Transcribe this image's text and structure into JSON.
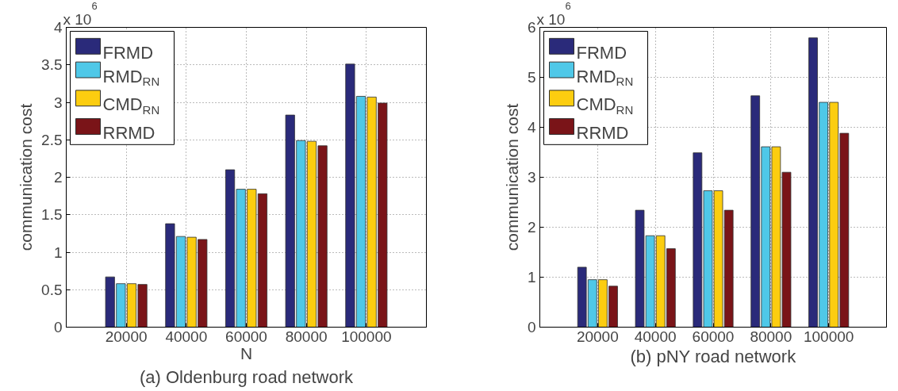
{
  "chart_data": [
    {
      "type": "bar",
      "title": "(a) Oldenburg road network",
      "xlabel": "N",
      "ylabel": "communication cost",
      "annotations": [
        "x 10$^{6}$"
      ],
      "categories": [
        "20000",
        "40000",
        "60000",
        "80000",
        "100000"
      ],
      "series": [
        {
          "name": "FRMD",
          "color": "#2a2a7a",
          "values": [
            0.67,
            1.38,
            2.1,
            2.83,
            3.51
          ]
        },
        {
          "name": "RMD$_{RN}$",
          "color": "#4fc8e8",
          "values": [
            0.58,
            1.21,
            1.84,
            2.49,
            3.08
          ]
        },
        {
          "name": "CMD$_{RN}$",
          "color": "#fccd10",
          "values": [
            0.58,
            1.2,
            1.84,
            2.48,
            3.07
          ]
        },
        {
          "name": "RRMD",
          "color": "#7a1418",
          "values": [
            0.57,
            1.17,
            1.78,
            2.42,
            2.99
          ]
        }
      ],
      "ylim": [
        0,
        4
      ],
      "yticks": [
        0,
        0.5,
        1,
        1.5,
        2,
        2.5,
        3,
        3.5,
        4
      ],
      "grid": true,
      "legend": "top left"
    },
    {
      "type": "bar",
      "title": "(b) pNY road network",
      "ylabel": "communication cost",
      "annotations": [
        "x 10$^{6}$"
      ],
      "categories": [
        "20000",
        "40000",
        "60000",
        "80000",
        "100000"
      ],
      "series": [
        {
          "name": "FRMD",
          "color": "#2a2a7a",
          "values": [
            1.2,
            2.34,
            3.49,
            4.63,
            5.79
          ]
        },
        {
          "name": "RMD$_{RN}$",
          "color": "#4fc8e8",
          "values": [
            0.95,
            1.83,
            2.73,
            3.61,
            4.5
          ]
        },
        {
          "name": "CMD$_{RN}$",
          "color": "#fccd10",
          "values": [
            0.95,
            1.83,
            2.73,
            3.61,
            4.5
          ]
        },
        {
          "name": "RRMD",
          "color": "#7a1418",
          "values": [
            0.82,
            1.57,
            2.34,
            3.1,
            3.88
          ]
        }
      ],
      "ylim": [
        0,
        6
      ],
      "yticks": [
        0,
        1,
        2,
        3,
        4,
        5,
        6
      ],
      "grid": true,
      "legend": "top left"
    }
  ]
}
